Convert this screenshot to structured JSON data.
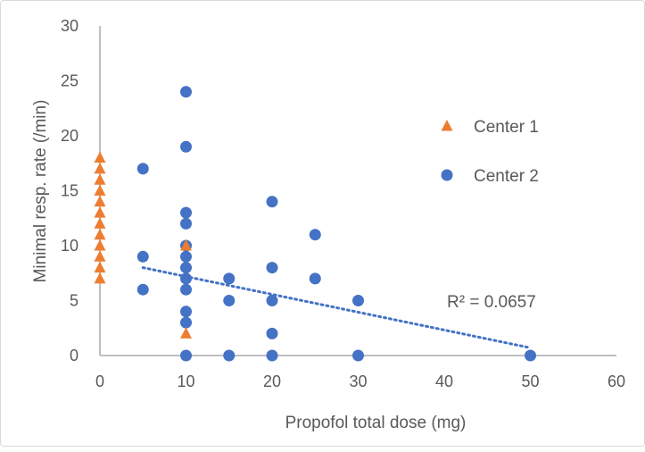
{
  "chart_data": {
    "type": "scatter",
    "title": "",
    "xlabel": "Propofol total dose (mg)",
    "ylabel": "Minimal resp. rate (/min)",
    "xlim": [
      0,
      60
    ],
    "ylim": [
      0,
      30
    ],
    "xticks": [
      "0",
      "10",
      "20",
      "30",
      "40",
      "50",
      "60"
    ],
    "yticks": [
      "0",
      "5",
      "10",
      "15",
      "20",
      "25",
      "30"
    ],
    "grid": false,
    "legend_position": "right",
    "series": [
      {
        "name": "Center 1",
        "marker": "triangle",
        "color": "#ED7D31",
        "points": [
          [
            0,
            7
          ],
          [
            0,
            8
          ],
          [
            0,
            9
          ],
          [
            0,
            10
          ],
          [
            0,
            11
          ],
          [
            0,
            12
          ],
          [
            0,
            13
          ],
          [
            0,
            14
          ],
          [
            0,
            15
          ],
          [
            0,
            16
          ],
          [
            0,
            17
          ],
          [
            0,
            18
          ],
          [
            10,
            10
          ],
          [
            10,
            2
          ]
        ]
      },
      {
        "name": "Center 2",
        "marker": "circle",
        "color": "#4472C4",
        "points": [
          [
            5,
            17
          ],
          [
            5,
            9
          ],
          [
            5,
            6
          ],
          [
            10,
            24
          ],
          [
            10,
            19
          ],
          [
            10,
            13
          ],
          [
            10,
            12
          ],
          [
            10,
            10
          ],
          [
            10,
            9
          ],
          [
            10,
            8
          ],
          [
            10,
            7
          ],
          [
            10,
            6
          ],
          [
            10,
            4
          ],
          [
            10,
            3
          ],
          [
            10,
            0
          ],
          [
            15,
            7
          ],
          [
            15,
            5
          ],
          [
            15,
            0
          ],
          [
            20,
            14
          ],
          [
            20,
            8
          ],
          [
            20,
            5
          ],
          [
            20,
            2
          ],
          [
            20,
            0
          ],
          [
            25,
            11
          ],
          [
            25,
            7
          ],
          [
            30,
            5
          ],
          [
            30,
            0
          ],
          [
            50,
            0
          ]
        ]
      }
    ],
    "trendline": {
      "series": "Center 2",
      "type": "linear",
      "x_range": [
        5,
        50
      ],
      "y_start": 8.0,
      "y_end": 0.7,
      "color": "#4472C4",
      "label": "R² = 0.0657"
    }
  }
}
